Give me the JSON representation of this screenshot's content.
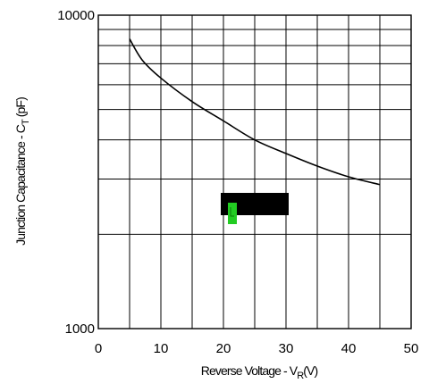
{
  "chart_data": {
    "type": "line",
    "title": "",
    "xlabel": {
      "main": "Reverse Voltage - V",
      "subscript": "R",
      "suffix": "(V)"
    },
    "ylabel": {
      "main": "Junction Capacitance - C",
      "subscript": "T",
      "suffix": " (pF)"
    },
    "x_scale": "linear",
    "y_scale": "log",
    "xlim": [
      0,
      50
    ],
    "ylim": [
      1000,
      10000
    ],
    "x_ticks": [
      0,
      10,
      20,
      30,
      40,
      50
    ],
    "x_tick_labels": [
      "0",
      "10",
      "20",
      "30",
      "40",
      "50"
    ],
    "y_tick_labels": [
      "1000",
      "10000"
    ],
    "grid": true,
    "legend": "none",
    "series": [
      {
        "x": [
          5,
          7,
          10,
          15,
          20,
          25,
          30,
          35,
          40,
          45
        ],
        "values": [
          8400,
          7200,
          6300,
          5300,
          4600,
          4000,
          3620,
          3300,
          3050,
          2880
        ]
      }
    ],
    "colors": {
      "line": "#000000",
      "grid": "#000000",
      "redaction": "#000000",
      "marker": "#22cc22"
    }
  }
}
